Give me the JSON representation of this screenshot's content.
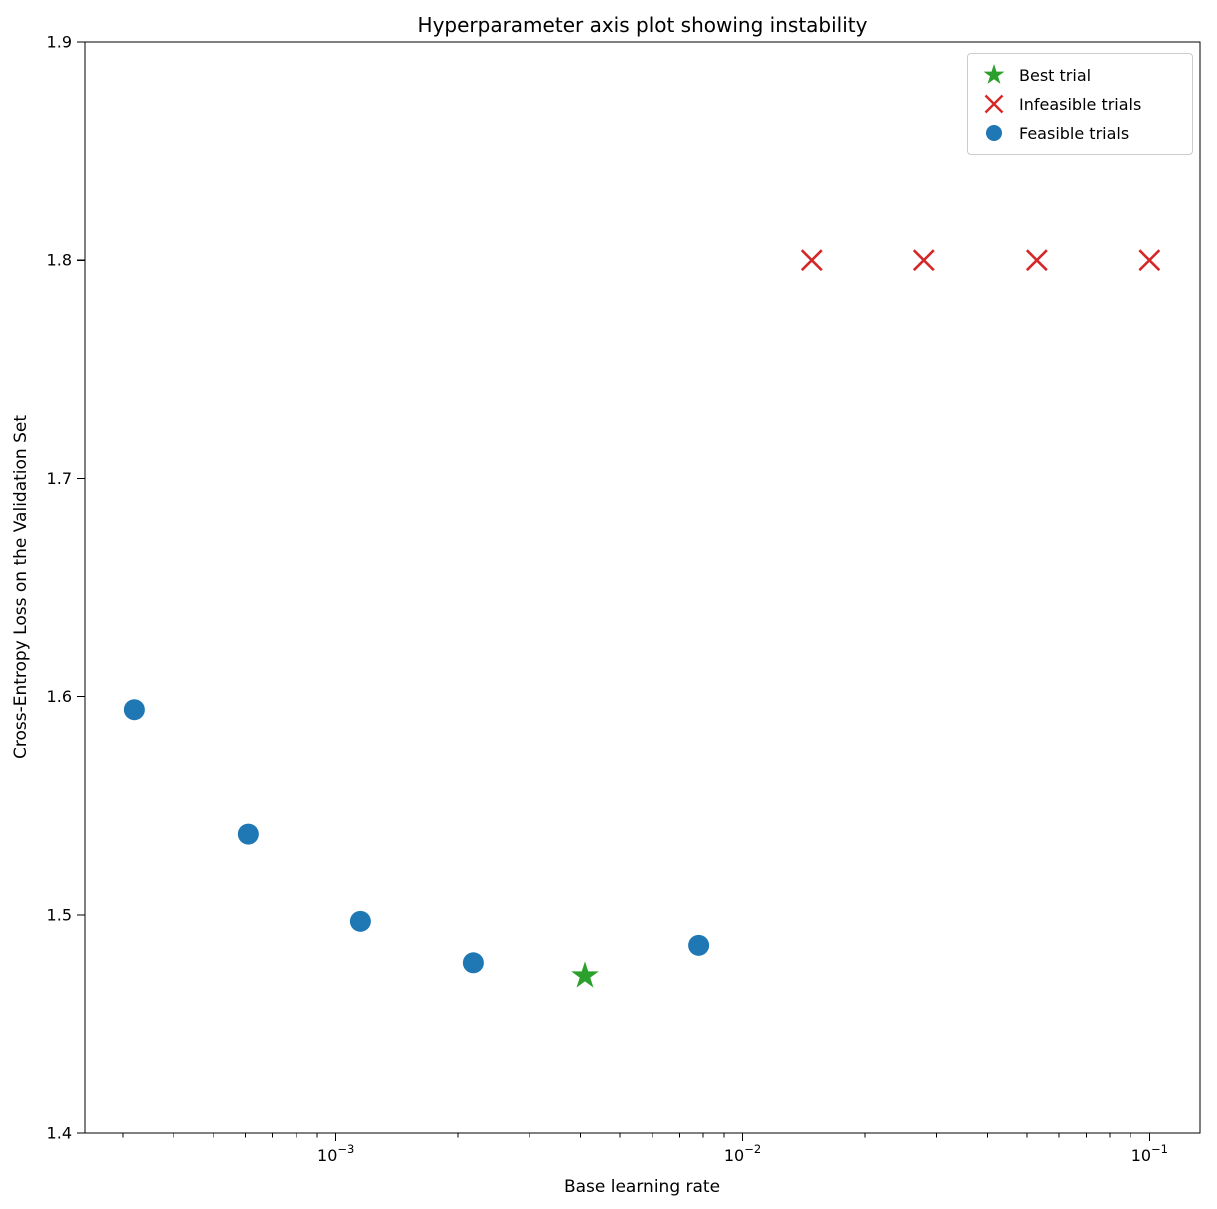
{
  "chart_data": {
    "type": "scatter",
    "title": "Hyperparameter axis plot showing instability",
    "xlabel": "Base learning rate",
    "ylabel": "Cross-Entropy Loss on the Validation Set",
    "x_scale": "log",
    "y_scale": "linear",
    "xlim": [
      0.000242,
      0.1332
    ],
    "ylim": [
      1.4,
      1.9
    ],
    "x_ticks": [
      {
        "value": 0.001,
        "exponent": -3
      },
      {
        "value": 0.01,
        "exponent": -2
      },
      {
        "value": 0.1,
        "exponent": -1
      }
    ],
    "y_ticks": [
      1.4,
      1.5,
      1.6,
      1.7,
      1.8,
      1.9
    ],
    "grid": false,
    "legend_position": "upper right",
    "legend_entries": [
      {
        "label": "Best trial",
        "marker": "star",
        "color": "#2ca02c"
      },
      {
        "label": "Infeasible trials",
        "marker": "x",
        "color": "#d62728"
      },
      {
        "label": "Feasible trials",
        "marker": "circle",
        "color": "#1f77b4"
      }
    ],
    "series": [
      {
        "name": "Feasible trials",
        "marker": "circle",
        "color": "#1f77b4",
        "points": [
          {
            "x": 0.00032,
            "y": 1.594
          },
          {
            "x": 0.00061,
            "y": 1.537
          },
          {
            "x": 0.00115,
            "y": 1.497
          },
          {
            "x": 0.00218,
            "y": 1.478
          },
          {
            "x": 0.0078,
            "y": 1.486
          }
        ]
      },
      {
        "name": "Best trial",
        "marker": "star",
        "color": "#2ca02c",
        "points": [
          {
            "x": 0.0041,
            "y": 1.472
          }
        ]
      },
      {
        "name": "Infeasible trials",
        "marker": "x",
        "color": "#d62728",
        "points": [
          {
            "x": 0.0148,
            "y": 1.8
          },
          {
            "x": 0.0279,
            "y": 1.8
          },
          {
            "x": 0.0529,
            "y": 1.8
          },
          {
            "x": 0.1,
            "y": 1.8
          }
        ]
      }
    ]
  }
}
